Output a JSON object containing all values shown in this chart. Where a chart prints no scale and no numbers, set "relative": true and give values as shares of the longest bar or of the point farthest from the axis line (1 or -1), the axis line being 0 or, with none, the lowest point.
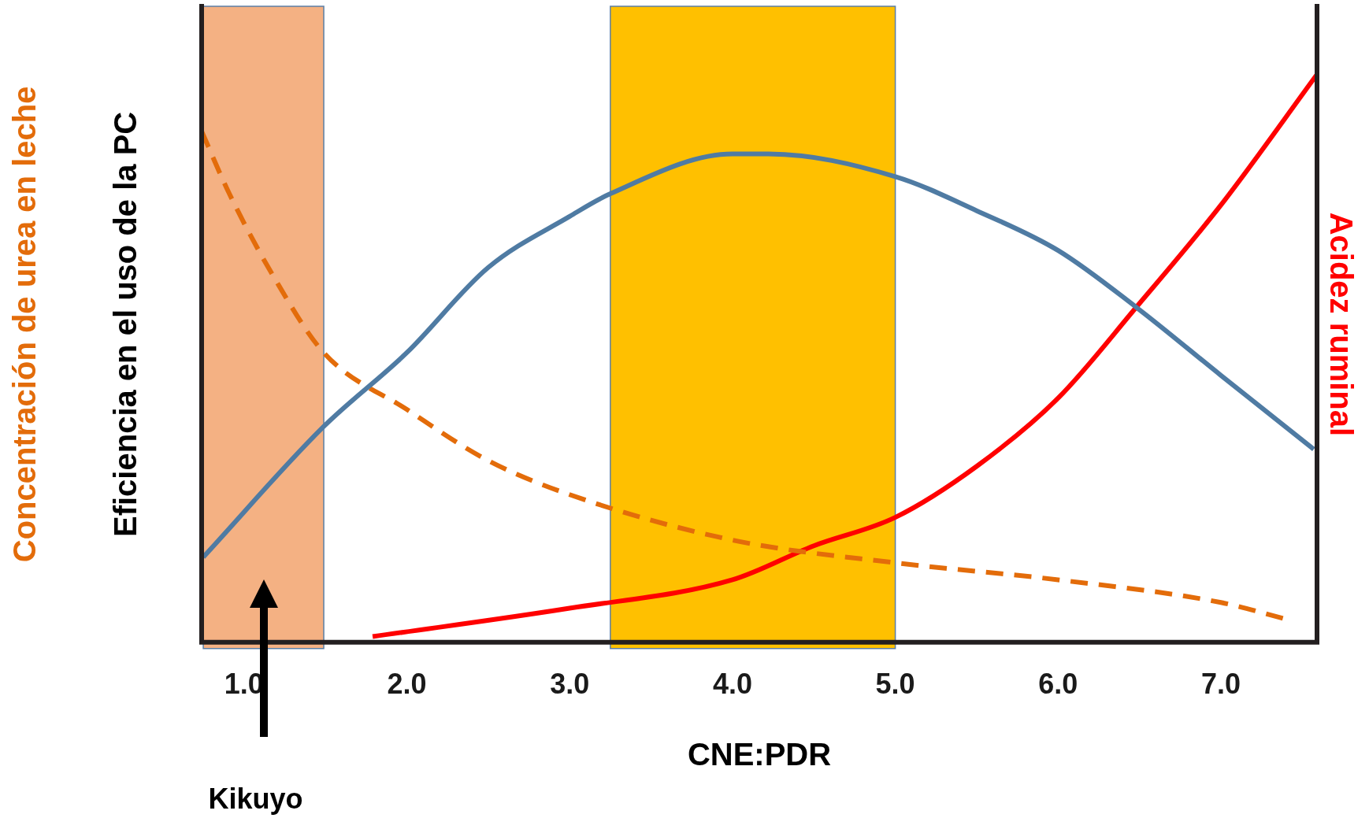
{
  "chart_data": {
    "type": "line",
    "relative": true,
    "xlabel": "CNE:PDR",
    "ylabel": "Eficiencia en el uso de la PC",
    "y2label": "Acidez ruminal",
    "y3label": "Concentración de urea en leche",
    "xlim": [
      0.74,
      7.59
    ],
    "xticks": [
      {
        "value": 1,
        "label": "1.0"
      },
      {
        "value": 2,
        "label": "2.0"
      },
      {
        "value": 3,
        "label": "3.0"
      },
      {
        "value": 4,
        "label": "4.0"
      },
      {
        "value": 5,
        "label": "5.0"
      },
      {
        "value": 6,
        "label": "6.0"
      },
      {
        "value": 7,
        "label": "7.0"
      }
    ],
    "grid": false,
    "legend": false,
    "marker": "none",
    "bands": [
      {
        "axis": "x",
        "from": 0.75,
        "to": 1.49,
        "color": "#f4b183"
      },
      {
        "axis": "x",
        "from": 3.25,
        "to": 5.0,
        "color": "#ffc000"
      }
    ],
    "annotations": [
      "Kikuyo"
    ],
    "series": [
      {
        "color": "#4f7ba3",
        "line_style": "solid",
        "x": [
          0.75,
          1.49,
          2.0,
          2.5,
          3.0,
          3.25,
          4.0,
          4.22,
          5.0,
          5.5,
          6.0,
          6.48,
          7.0,
          7.57
        ],
        "values": [
          0.15,
          0.38,
          0.51,
          0.66,
          0.75,
          0.79,
          0.86,
          0.86,
          0.82,
          0.76,
          0.69,
          0.59,
          0.47,
          0.34
        ]
      },
      {
        "color": "#e36c0a",
        "line_style": "dashed",
        "x": [
          0.74,
          0.91,
          1.19,
          1.49,
          2.0,
          2.5,
          3.0,
          4.0,
          5.0,
          6.0,
          7.0,
          7.41
        ],
        "values": [
          0.9,
          0.79,
          0.64,
          0.51,
          0.41,
          0.32,
          0.26,
          0.18,
          0.14,
          0.11,
          0.07,
          0.04
        ]
      },
      {
        "color": "#ff0000",
        "line_style": "solid",
        "x": [
          1.79,
          3.0,
          4.0,
          4.5,
          5.0,
          5.5,
          6.0,
          6.48,
          7.0,
          7.59
        ],
        "values": [
          0.01,
          0.06,
          0.11,
          0.17,
          0.22,
          0.31,
          0.43,
          0.59,
          0.77,
          1.0
        ]
      }
    ]
  }
}
